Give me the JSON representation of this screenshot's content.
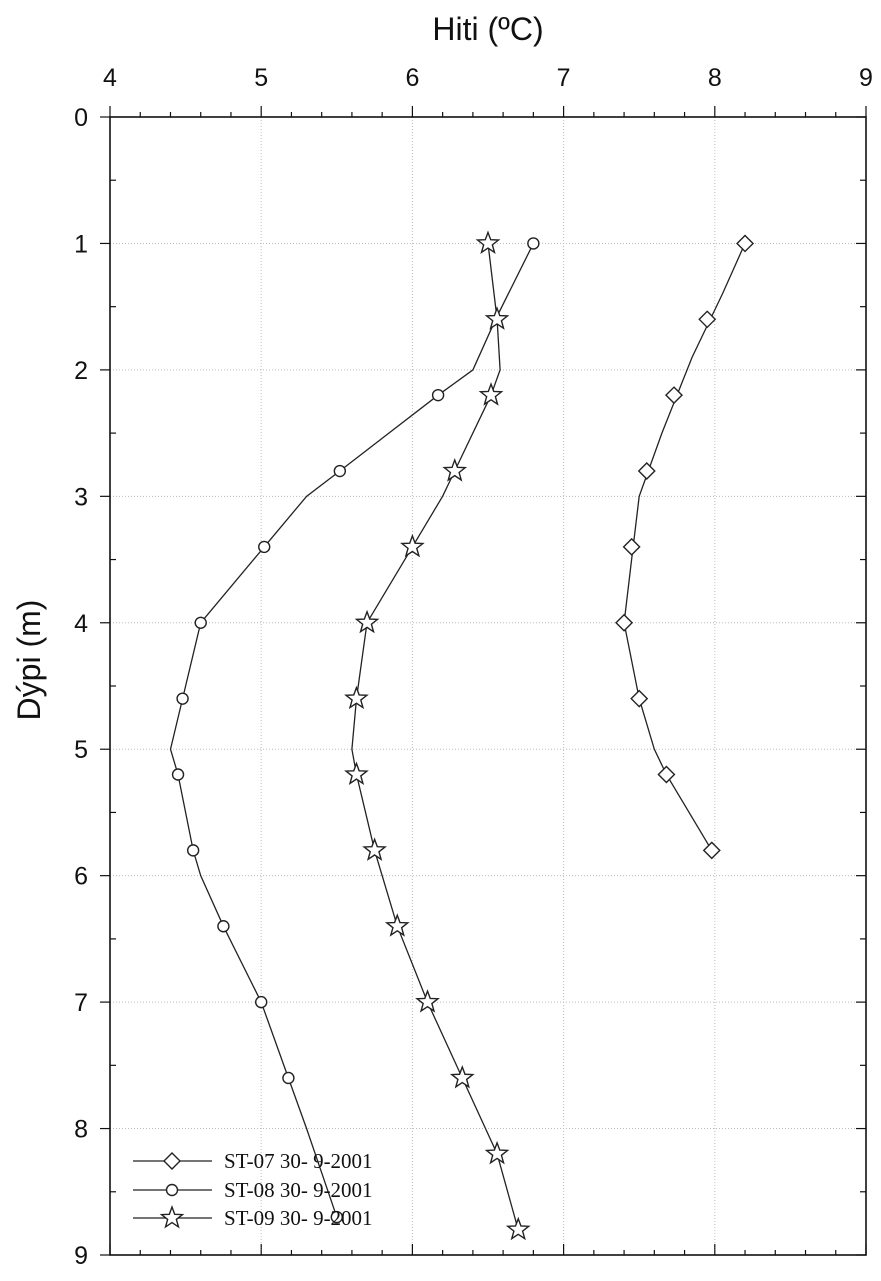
{
  "chart_data": {
    "type": "line",
    "xlabel": "Hiti (ºC)",
    "ylabel": "Dýpi (m)",
    "xlim": [
      4,
      9
    ],
    "ylim": [
      0,
      9
    ],
    "y_inverted": true,
    "x_axis_position": "top",
    "x_ticks": [
      "4",
      "5",
      "6",
      "7",
      "8",
      "9"
    ],
    "y_ticks": [
      "0",
      "1",
      "2",
      "3",
      "4",
      "5",
      "6",
      "7",
      "8",
      "9"
    ],
    "grid": true,
    "legend_position": "bottom-left",
    "series": [
      {
        "name": "ST-07  30- 9-2001",
        "marker": "diamond",
        "markers": [
          {
            "x": 8.2,
            "y": 1.0
          },
          {
            "x": 7.95,
            "y": 1.6
          },
          {
            "x": 7.73,
            "y": 2.2
          },
          {
            "x": 7.55,
            "y": 2.8
          },
          {
            "x": 7.45,
            "y": 3.4
          },
          {
            "x": 7.4,
            "y": 4.0
          },
          {
            "x": 7.5,
            "y": 4.6
          },
          {
            "x": 7.68,
            "y": 5.2
          },
          {
            "x": 7.98,
            "y": 5.8
          }
        ],
        "line": [
          {
            "x": 8.2,
            "y": 1.0
          },
          {
            "x": 8.05,
            "y": 1.4
          },
          {
            "x": 7.85,
            "y": 1.9
          },
          {
            "x": 7.65,
            "y": 2.5
          },
          {
            "x": 7.5,
            "y": 3.0
          },
          {
            "x": 7.45,
            "y": 3.5
          },
          {
            "x": 7.4,
            "y": 4.0
          },
          {
            "x": 7.5,
            "y": 4.6
          },
          {
            "x": 7.6,
            "y": 5.0
          },
          {
            "x": 7.68,
            "y": 5.2
          },
          {
            "x": 7.98,
            "y": 5.8
          }
        ]
      },
      {
        "name": "ST-08  30- 9-2001",
        "marker": "circle",
        "markers": [
          {
            "x": 6.8,
            "y": 1.0
          },
          {
            "x": 6.17,
            "y": 2.2
          },
          {
            "x": 5.52,
            "y": 2.8
          },
          {
            "x": 5.02,
            "y": 3.4
          },
          {
            "x": 4.6,
            "y": 4.0
          },
          {
            "x": 4.48,
            "y": 4.6
          },
          {
            "x": 4.45,
            "y": 5.2
          },
          {
            "x": 4.55,
            "y": 5.8
          },
          {
            "x": 4.75,
            "y": 6.4
          },
          {
            "x": 5.0,
            "y": 7.0
          },
          {
            "x": 5.18,
            "y": 7.6
          },
          {
            "x": 5.5,
            "y": 8.7
          }
        ],
        "line": [
          {
            "x": 6.8,
            "y": 1.0
          },
          {
            "x": 6.55,
            "y": 1.6
          },
          {
            "x": 6.4,
            "y": 2.0
          },
          {
            "x": 6.17,
            "y": 2.2
          },
          {
            "x": 5.52,
            "y": 2.8
          },
          {
            "x": 5.3,
            "y": 3.0
          },
          {
            "x": 5.02,
            "y": 3.4
          },
          {
            "x": 4.6,
            "y": 4.0
          },
          {
            "x": 4.48,
            "y": 4.6
          },
          {
            "x": 4.4,
            "y": 5.0
          },
          {
            "x": 4.45,
            "y": 5.2
          },
          {
            "x": 4.55,
            "y": 5.8
          },
          {
            "x": 4.6,
            "y": 6.0
          },
          {
            "x": 4.75,
            "y": 6.4
          },
          {
            "x": 5.0,
            "y": 7.0
          },
          {
            "x": 5.18,
            "y": 7.6
          },
          {
            "x": 5.3,
            "y": 8.0
          },
          {
            "x": 5.5,
            "y": 8.7
          }
        ]
      },
      {
        "name": "ST-09  30- 9-2001",
        "marker": "star",
        "markers": [
          {
            "x": 6.5,
            "y": 1.0
          },
          {
            "x": 6.56,
            "y": 1.6
          },
          {
            "x": 6.52,
            "y": 2.2
          },
          {
            "x": 6.28,
            "y": 2.8
          },
          {
            "x": 6.0,
            "y": 3.4
          },
          {
            "x": 5.7,
            "y": 4.0
          },
          {
            "x": 5.63,
            "y": 4.6
          },
          {
            "x": 5.63,
            "y": 5.2
          },
          {
            "x": 5.75,
            "y": 5.8
          },
          {
            "x": 5.9,
            "y": 6.4
          },
          {
            "x": 6.1,
            "y": 7.0
          },
          {
            "x": 6.33,
            "y": 7.6
          },
          {
            "x": 6.56,
            "y": 8.2
          },
          {
            "x": 6.7,
            "y": 8.8
          }
        ],
        "line": [
          {
            "x": 6.5,
            "y": 1.0
          },
          {
            "x": 6.56,
            "y": 1.6
          },
          {
            "x": 6.58,
            "y": 2.0
          },
          {
            "x": 6.52,
            "y": 2.2
          },
          {
            "x": 6.28,
            "y": 2.8
          },
          {
            "x": 6.2,
            "y": 3.0
          },
          {
            "x": 6.0,
            "y": 3.4
          },
          {
            "x": 5.7,
            "y": 4.0
          },
          {
            "x": 5.63,
            "y": 4.6
          },
          {
            "x": 5.6,
            "y": 5.0
          },
          {
            "x": 5.63,
            "y": 5.2
          },
          {
            "x": 5.75,
            "y": 5.8
          },
          {
            "x": 5.9,
            "y": 6.4
          },
          {
            "x": 6.1,
            "y": 7.0
          },
          {
            "x": 6.33,
            "y": 7.6
          },
          {
            "x": 6.56,
            "y": 8.2
          },
          {
            "x": 6.7,
            "y": 8.8
          }
        ]
      }
    ]
  }
}
